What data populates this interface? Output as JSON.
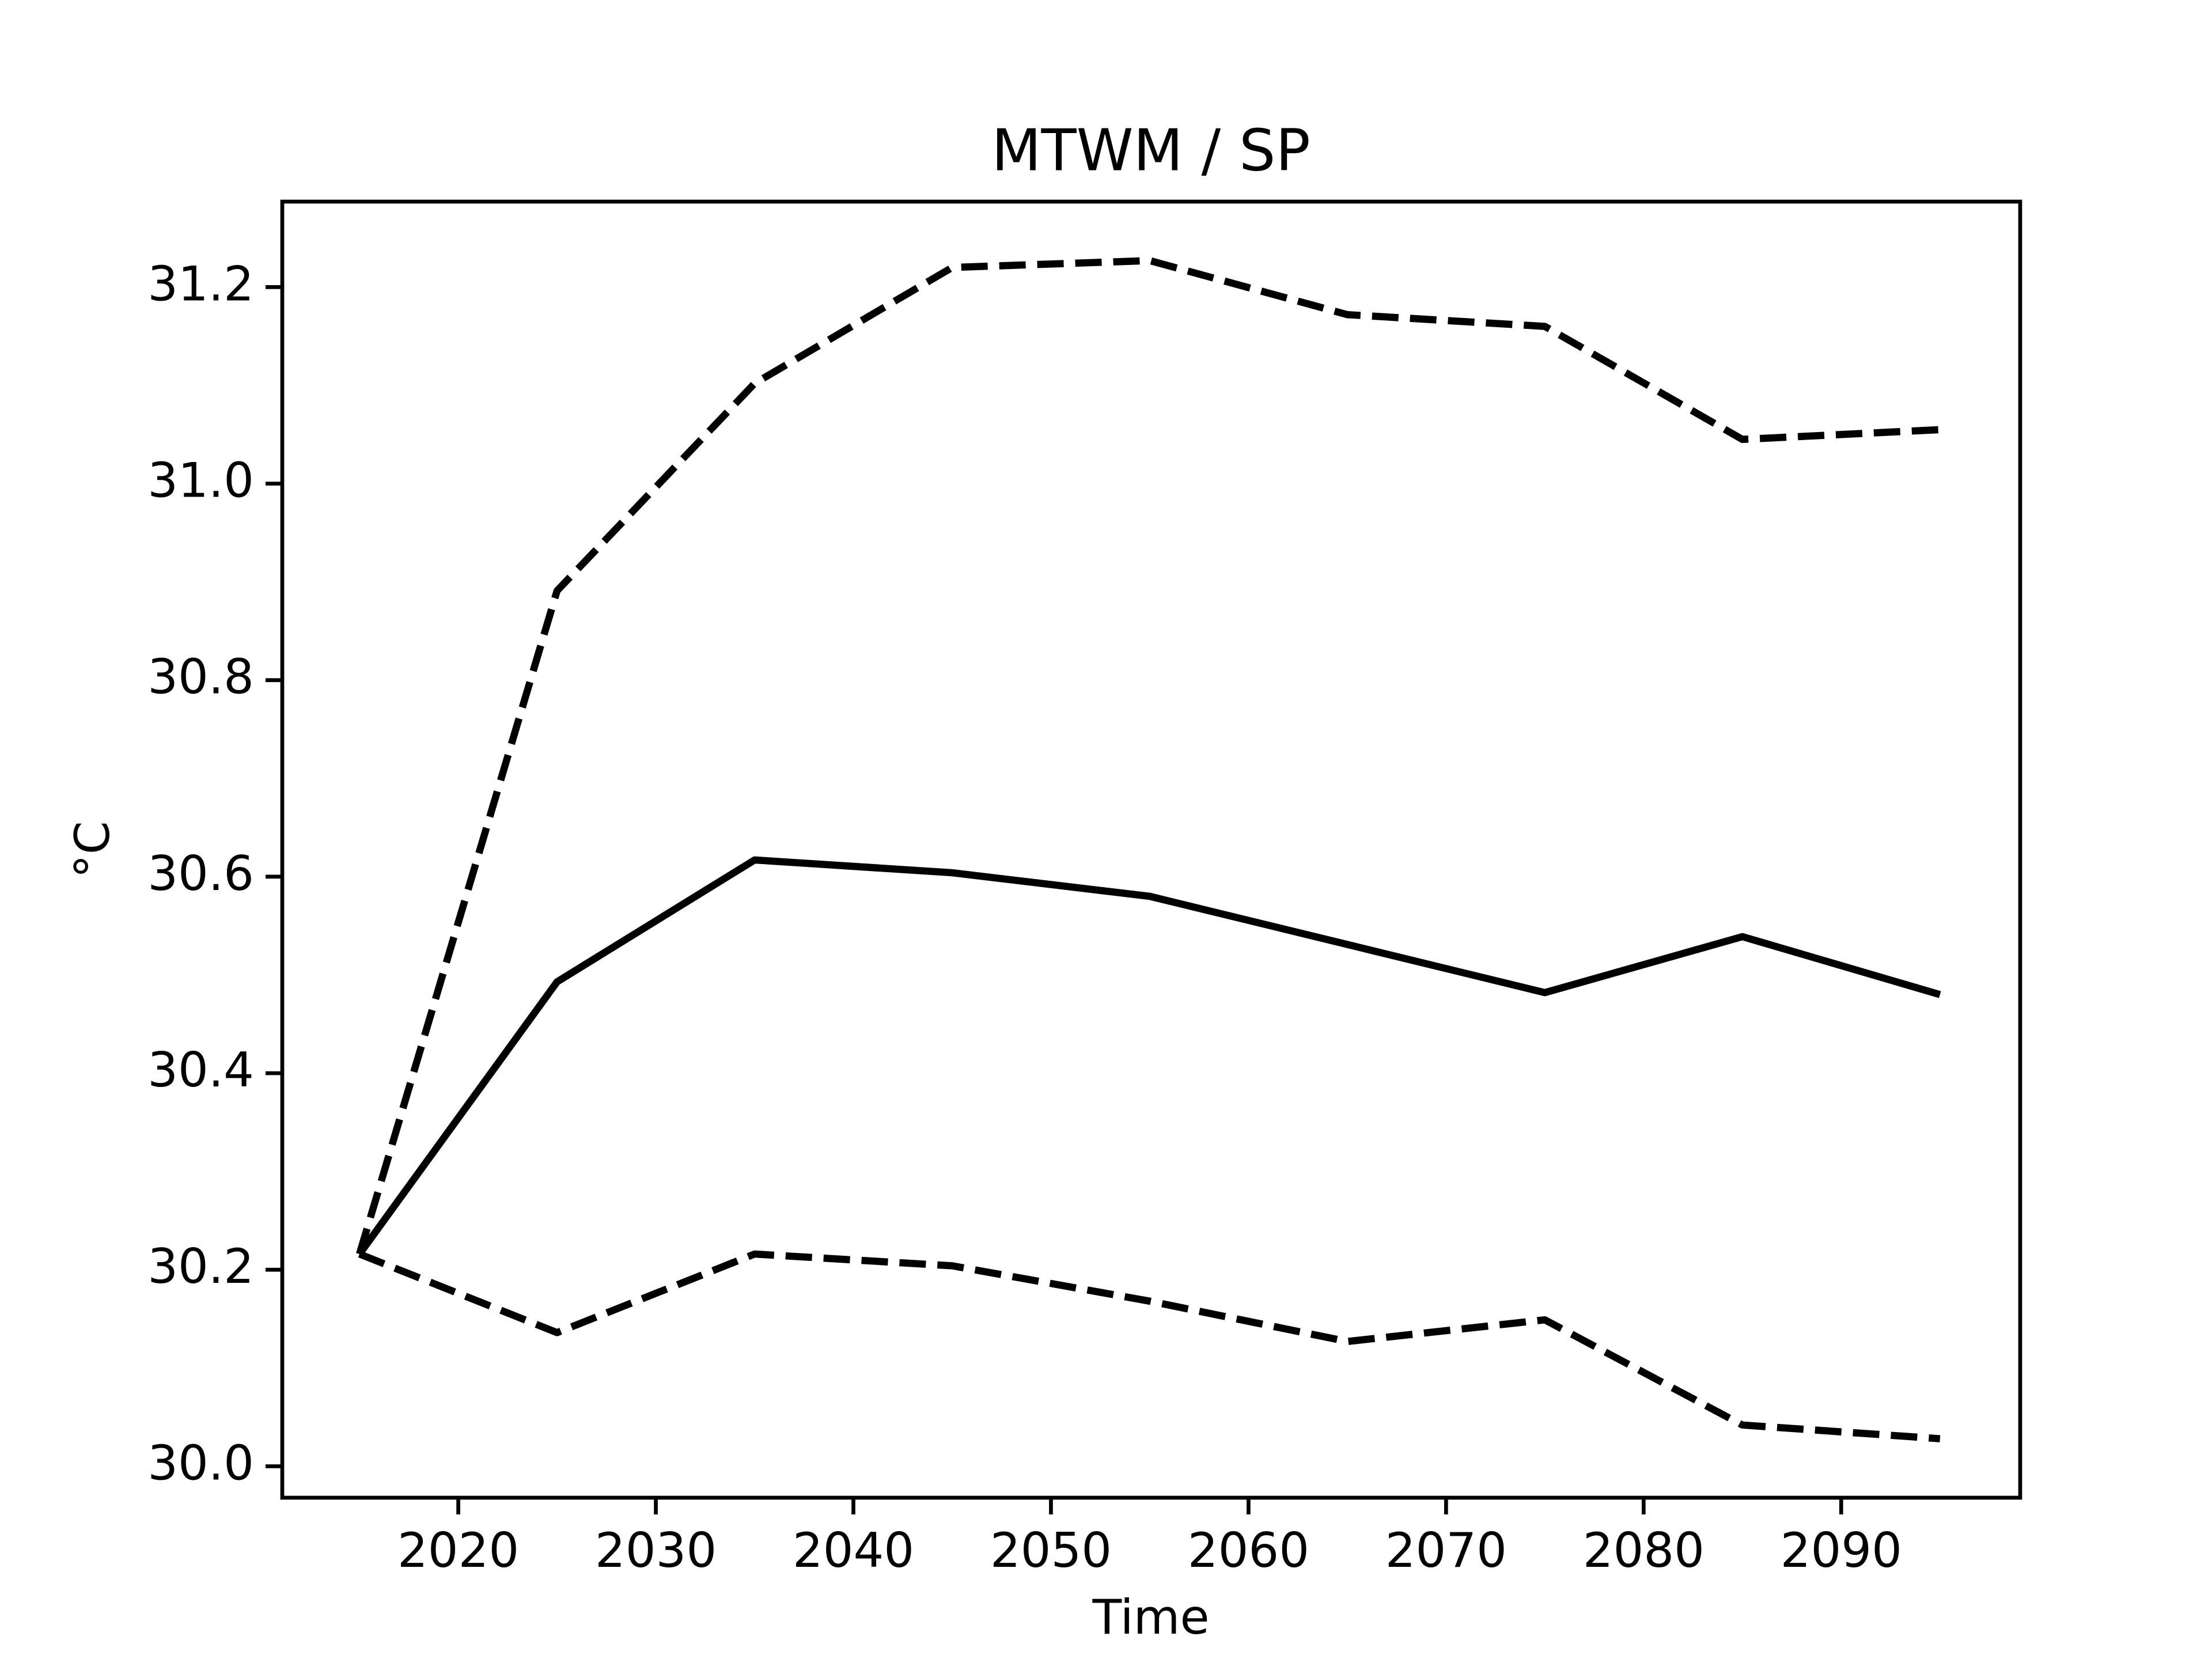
{
  "chart_data": {
    "type": "line",
    "title": "MTWM / SP",
    "xlabel": "Time",
    "ylabel": "°C",
    "x": [
      2015,
      2025,
      2035,
      2045,
      2055,
      2065,
      2075,
      2085,
      2095
    ],
    "series": [
      {
        "color": "#000000",
        "linestyle": "solid",
        "values": [
          30.216,
          30.493,
          30.617,
          30.604,
          30.58,
          30.531,
          30.482,
          30.539,
          30.48
        ]
      },
      {
        "color": "#000000",
        "linestyle": "dashed",
        "values": [
          30.216,
          30.891,
          31.102,
          31.22,
          31.227,
          31.172,
          31.16,
          31.045,
          31.055
        ]
      },
      {
        "color": "#000000",
        "linestyle": "dashed",
        "values": [
          30.216,
          30.136,
          30.216,
          30.204,
          30.168,
          30.127,
          30.149,
          30.042,
          30.028
        ]
      }
    ],
    "xlim": [
      2011.09,
      2099.06
    ],
    "xticks": [
      2020,
      2030,
      2040,
      2050,
      2060,
      2070,
      2080,
      2090
    ],
    "ylim": [
      29.968,
      31.287
    ],
    "yticks": [
      {
        "value": 30,
        "label": "30.0"
      },
      30.2,
      30.4,
      30.6,
      30.8,
      {
        "value": 31,
        "label": "31.0"
      },
      31.2
    ],
    "grid": false
  }
}
